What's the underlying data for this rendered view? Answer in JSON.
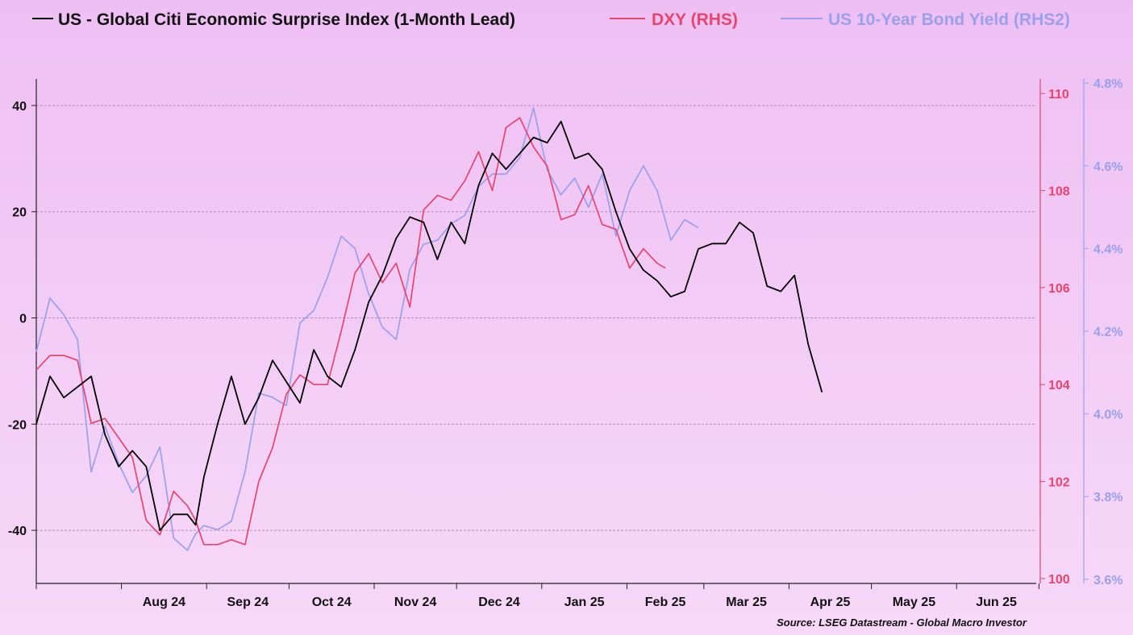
{
  "chart_data": {
    "type": "line",
    "legend_position": "top",
    "grid": true,
    "source": "Source: LSEG Datastream - Global Macro Investor",
    "x_ticks": [
      "Aug 24",
      "Sep 24",
      "Oct 24",
      "Nov 24",
      "Dec 24",
      "Jan 25",
      "Feb 25",
      "Mar 25",
      "Apr 25",
      "May 25",
      "Jun 25"
    ],
    "x_range": [
      "2024-07-01",
      "2025-06-30"
    ],
    "axes": {
      "left": {
        "ylim": [
          -50,
          45
        ],
        "ticks": [
          "-40",
          "-20",
          "0",
          "20",
          "40"
        ],
        "tick_values": [
          -40,
          -20,
          0,
          20,
          40
        ]
      },
      "right": {
        "ylim": [
          99.9,
          110.3
        ],
        "ticks": [
          "100",
          "102",
          "104",
          "106",
          "108",
          "110"
        ],
        "tick_values": [
          100,
          102,
          104,
          106,
          108,
          110
        ]
      },
      "right2": {
        "ylim": [
          3.59,
          4.81
        ],
        "ticks": [
          "3.6%",
          "3.8%",
          "4.0%",
          "4.2%",
          "4.4%",
          "4.6%",
          "4.8%"
        ],
        "tick_values": [
          3.6,
          3.8,
          4.0,
          4.2,
          4.4,
          4.6,
          4.8
        ]
      }
    },
    "series": [
      {
        "name": "US - Global Citi Economic Surprise Index (1-Month Lead)",
        "axis": "left",
        "color": "#000000",
        "x": [
          "2024-07-01",
          "2024-07-06",
          "2024-07-11",
          "2024-07-16",
          "2024-07-21",
          "2024-07-26",
          "2024-07-31",
          "2024-08-05",
          "2024-08-10",
          "2024-08-15",
          "2024-08-20",
          "2024-08-25",
          "2024-08-28",
          "2024-08-31",
          "2024-09-05",
          "2024-09-10",
          "2024-09-15",
          "2024-09-20",
          "2024-09-25",
          "2024-09-30",
          "2024-10-05",
          "2024-10-10",
          "2024-10-15",
          "2024-10-20",
          "2024-10-25",
          "2024-10-30",
          "2024-11-04",
          "2024-11-09",
          "2024-11-14",
          "2024-11-19",
          "2024-11-24",
          "2024-11-29",
          "2024-12-04",
          "2024-12-09",
          "2024-12-14",
          "2024-12-19",
          "2024-12-24",
          "2024-12-29",
          "2025-01-03",
          "2025-01-08",
          "2025-01-13",
          "2025-01-18",
          "2025-01-23",
          "2025-01-28",
          "2025-02-02",
          "2025-02-07",
          "2025-02-12",
          "2025-02-17",
          "2025-02-22",
          "2025-02-27",
          "2025-03-04",
          "2025-03-09",
          "2025-03-14",
          "2025-03-19",
          "2025-03-24",
          "2025-03-29",
          "2025-04-03",
          "2025-04-08",
          "2025-04-13"
        ],
        "values": [
          -20,
          -11,
          -15,
          -13,
          -11,
          -22,
          -28,
          -25,
          -28,
          -40,
          -37,
          -37,
          -39,
          -30,
          -20,
          -11,
          -20,
          -15,
          -8,
          -12,
          -16,
          -6,
          -11,
          -13,
          -6,
          3,
          8,
          15,
          19,
          18,
          11,
          18,
          14,
          25,
          31,
          28,
          31,
          34,
          33,
          37,
          30,
          31,
          28,
          20,
          13,
          9,
          7,
          4,
          5,
          13,
          14,
          14,
          18,
          16,
          6,
          5,
          8,
          -5,
          -14
        ]
      },
      {
        "name": "DXY (RHS)",
        "axis": "right",
        "color": "#e8456c",
        "x": [
          "2024-07-01",
          "2024-07-06",
          "2024-07-11",
          "2024-07-16",
          "2024-07-21",
          "2024-07-26",
          "2024-07-31",
          "2024-08-05",
          "2024-08-10",
          "2024-08-15",
          "2024-08-20",
          "2024-08-25",
          "2024-08-28",
          "2024-08-31",
          "2024-09-05",
          "2024-09-10",
          "2024-09-15",
          "2024-09-20",
          "2024-09-25",
          "2024-09-30",
          "2024-10-05",
          "2024-10-10",
          "2024-10-15",
          "2024-10-20",
          "2024-10-25",
          "2024-10-30",
          "2024-11-04",
          "2024-11-09",
          "2024-11-14",
          "2024-11-19",
          "2024-11-24",
          "2024-11-29",
          "2024-12-04",
          "2024-12-09",
          "2024-12-14",
          "2024-12-19",
          "2024-12-24",
          "2024-12-29",
          "2025-01-03",
          "2025-01-08",
          "2025-01-13",
          "2025-01-18",
          "2025-01-23",
          "2025-01-28",
          "2025-02-02",
          "2025-02-07",
          "2025-02-12",
          "2025-02-15"
        ],
        "values": [
          104.3,
          104.6,
          104.6,
          104.5,
          103.2,
          103.3,
          102.9,
          102.5,
          101.2,
          100.9,
          101.8,
          101.5,
          101.2,
          100.7,
          100.7,
          100.8,
          100.7,
          102.0,
          102.7,
          103.8,
          104.2,
          104.0,
          104.0,
          105.1,
          106.3,
          106.7,
          106.1,
          106.5,
          105.6,
          107.6,
          107.9,
          107.8,
          108.2,
          108.8,
          108.0,
          109.3,
          109.5,
          108.9,
          108.5,
          107.4,
          107.5,
          108.1,
          107.3,
          107.2,
          106.4,
          106.8,
          106.5,
          106.4
        ]
      },
      {
        "name": "US 10-Year Bond Yield (RHS2)",
        "axis": "right2",
        "color": "#9aa0ee",
        "x": [
          "2024-07-01",
          "2024-07-06",
          "2024-07-11",
          "2024-07-16",
          "2024-07-21",
          "2024-07-26",
          "2024-07-31",
          "2024-08-05",
          "2024-08-10",
          "2024-08-15",
          "2024-08-20",
          "2024-08-25",
          "2024-08-28",
          "2024-08-31",
          "2024-09-05",
          "2024-09-10",
          "2024-09-15",
          "2024-09-20",
          "2024-09-25",
          "2024-09-30",
          "2024-10-05",
          "2024-10-10",
          "2024-10-15",
          "2024-10-20",
          "2024-10-25",
          "2024-10-30",
          "2024-11-04",
          "2024-11-09",
          "2024-11-14",
          "2024-11-19",
          "2024-11-24",
          "2024-11-29",
          "2024-12-04",
          "2024-12-09",
          "2024-12-14",
          "2024-12-19",
          "2024-12-24",
          "2024-12-29",
          "2025-01-03",
          "2025-01-08",
          "2025-01-13",
          "2025-01-18",
          "2025-01-23",
          "2025-01-28",
          "2025-02-02",
          "2025-02-07",
          "2025-02-12",
          "2025-02-17",
          "2025-02-22",
          "2025-02-27"
        ],
        "values": [
          4.15,
          4.28,
          4.24,
          4.18,
          3.86,
          3.97,
          3.88,
          3.81,
          3.85,
          3.92,
          3.7,
          3.67,
          3.71,
          3.73,
          3.72,
          3.74,
          3.86,
          4.05,
          4.04,
          4.02,
          4.22,
          4.25,
          4.33,
          4.43,
          4.4,
          4.29,
          4.21,
          4.18,
          4.35,
          4.41,
          4.42,
          4.46,
          4.48,
          4.55,
          4.58,
          4.58,
          4.62,
          4.74,
          4.59,
          4.53,
          4.57,
          4.5,
          4.58,
          4.43,
          4.54,
          4.6,
          4.54,
          4.42,
          4.47,
          4.45
        ]
      }
    ]
  }
}
